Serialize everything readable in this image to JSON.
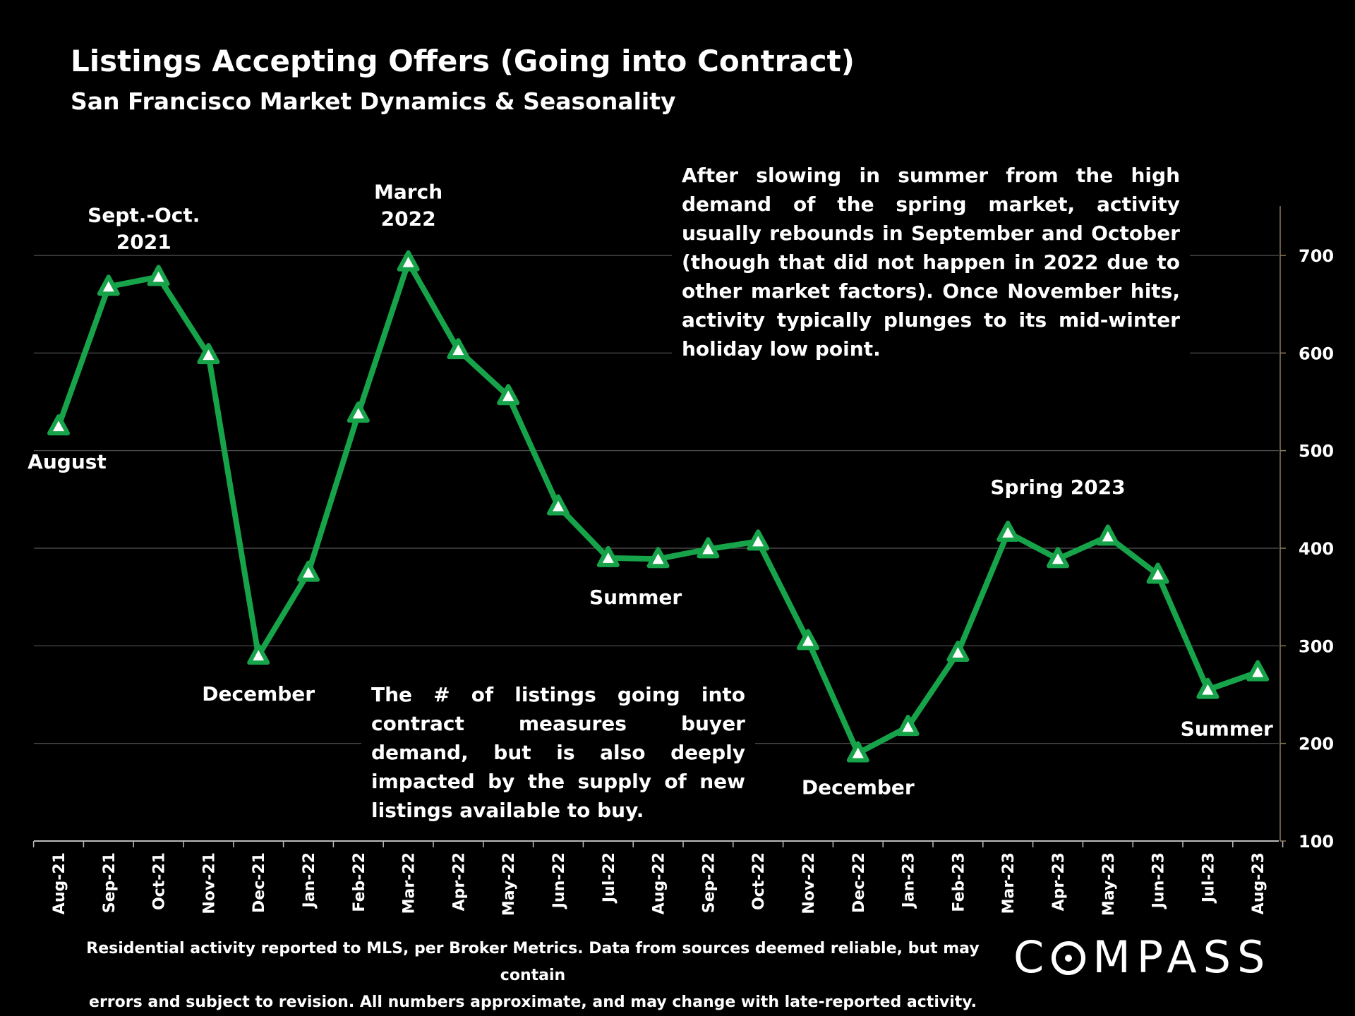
{
  "chart_data": {
    "type": "line",
    "title": "Listings Accepting Offers (Going into Contract)",
    "subtitle": "San Francisco Market Dynamics & Seasonality",
    "xlabel": "",
    "ylabel": "",
    "ylim": [
      100,
      700
    ],
    "yticks": [
      100,
      200,
      300,
      400,
      500,
      600,
      700
    ],
    "y_axis_side": "right",
    "grid": "horizontal",
    "categories": [
      "Aug-21",
      "Sep-21",
      "Oct-21",
      "Nov-21",
      "Dec-21",
      "Jan-22",
      "Feb-22",
      "Mar-22",
      "Apr-22",
      "May-22",
      "Jun-22",
      "Jul-22",
      "Aug-22",
      "Sep-22",
      "Oct-22",
      "Nov-22",
      "Dec-22",
      "Jan-23",
      "Feb-23",
      "Mar-23",
      "Apr-23",
      "May-23",
      "Jun-23",
      "Jul-23",
      "Aug-23"
    ],
    "series": [
      {
        "name": "",
        "color": "#17a34a",
        "marker": "triangle",
        "values": [
          525,
          668,
          678,
          598,
          290,
          375,
          538,
          693,
          603,
          556,
          443,
          390,
          389,
          399,
          407,
          305,
          190,
          217,
          293,
          416,
          389,
          412,
          373,
          255,
          273
        ]
      }
    ],
    "annotations": [
      {
        "lines": [
          "August"
        ],
        "category": "Aug-21"
      },
      {
        "lines": [
          "Sept.-Oct.",
          "2021"
        ],
        "category": "Sep-21"
      },
      {
        "lines": [
          "December"
        ],
        "category": "Dec-21"
      },
      {
        "lines": [
          "March",
          "2022"
        ],
        "category": "Mar-22"
      },
      {
        "lines": [
          "Summer"
        ],
        "category": "Aug-22"
      },
      {
        "lines": [
          "December"
        ],
        "category": "Dec-22"
      },
      {
        "lines": [
          "Spring 2023"
        ],
        "category": "Apr-23"
      },
      {
        "lines": [
          "Summer"
        ],
        "category": "Aug-23"
      }
    ]
  },
  "notes": {
    "top": "After slowing in summer from the high demand of the spring market, activity usually rebounds in September and October (though that did not happen in 2022 due to other market factors). Once November hits, activity typically plunges to its mid-winter holiday low point.",
    "bottom": "The # of listings going into contract measures buyer demand, but is also deeply impacted by the supply of new listings available to buy."
  },
  "footer": {
    "line1": "Residential activity reported to MLS, per Broker Metrics. Data from sources deemed reliable, but may contain",
    "line2": "errors and subject to revision. All numbers approximate, and may change with late-reported activity."
  },
  "logo": {
    "before": "C",
    "after": "MPASS"
  },
  "colors": {
    "background": "#000000",
    "line": "#17a34a",
    "grid": "#555555",
    "text": "#ffffff"
  }
}
